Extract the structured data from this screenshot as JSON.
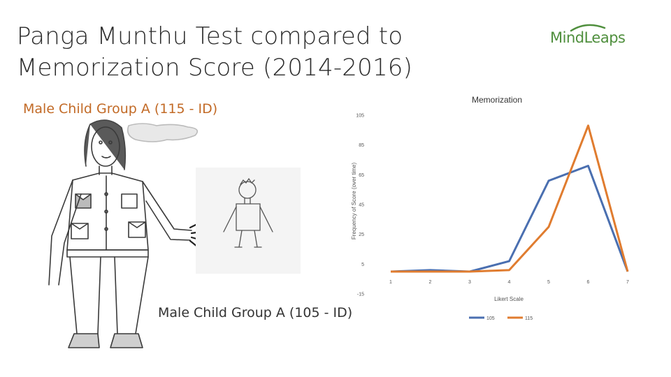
{
  "slide": {
    "title_line1": "Panga Munthu Test compared to",
    "title_line2": "Memorization Score (2014-2016)",
    "logo_text": "MindLeaps",
    "caption_a": "Male Child Group A (115 - ID)",
    "caption_b": "Male Child Group A (105 - ID)"
  },
  "colors": {
    "series_105": "#4a6fb0",
    "series_115": "#e07c2f",
    "logo_green": "#4f8f3d",
    "caption_a": "#c26a26"
  },
  "chart_data": {
    "type": "line",
    "title": "Memorization",
    "xlabel": "Likert Scale",
    "ylabel": "Frequency of Score (over time)",
    "categories": [
      "1",
      "2",
      "3",
      "4",
      "5",
      "6",
      "7"
    ],
    "y_ticks": [
      105,
      85,
      65,
      45,
      25,
      5,
      -15
    ],
    "ylim": [
      -15,
      105
    ],
    "grid": false,
    "legend_position": "bottom",
    "series": [
      {
        "name": "105",
        "values": [
          0,
          1,
          0,
          7,
          61,
          71,
          0
        ]
      },
      {
        "name": "115",
        "values": [
          0,
          0,
          0,
          1,
          30,
          98,
          0
        ]
      }
    ]
  }
}
